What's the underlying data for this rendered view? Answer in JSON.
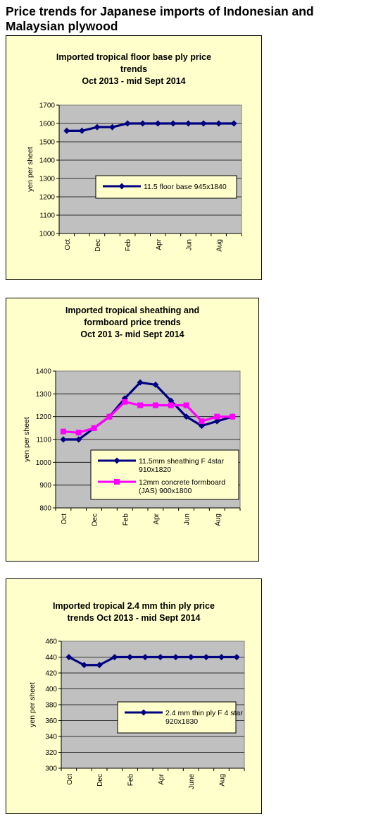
{
  "page_title": "Price trends for Japanese imports of Indonesian and Malaysian plywood",
  "chart_data": [
    {
      "type": "line",
      "title": "Imported tropical floor base ply price\ntrends\nOct 2013 - mid Sept 2014",
      "ylabel": "yen per sheet",
      "ylim": [
        1000,
        1700
      ],
      "yticks": [
        1000,
        1100,
        1200,
        1300,
        1400,
        1500,
        1600,
        1700
      ],
      "xticks": [
        "Oct",
        "Dec",
        "Feb",
        "Apr",
        "Jun",
        "Aug"
      ],
      "xtick_positions": [
        0,
        2,
        4,
        6,
        8,
        10
      ],
      "x": [
        0,
        1,
        2,
        3,
        4,
        5,
        6,
        7,
        8,
        9,
        10,
        11
      ],
      "grid": true,
      "legend_position": "center-right",
      "series": [
        {
          "name": "11.5 floor base 945x1840",
          "color": "#000080",
          "marker": "diamond",
          "values": [
            1560,
            1560,
            1580,
            1580,
            1600,
            1600,
            1600,
            1600,
            1600,
            1600,
            1600,
            1600
          ]
        }
      ]
    },
    {
      "type": "line",
      "title": "Imported tropical sheathing and\nformboard price trends\nOct 201 3- mid  Sept 2014",
      "ylabel": "yen per sheet",
      "ylim": [
        800,
        1400
      ],
      "yticks": [
        800,
        900,
        1000,
        1100,
        1200,
        1300,
        1400
      ],
      "xticks": [
        "Oct",
        "Dec",
        "Feb",
        "Apr",
        "Jun",
        "Aug"
      ],
      "xtick_positions": [
        0,
        2,
        4,
        6,
        8,
        10
      ],
      "x": [
        0,
        1,
        2,
        3,
        4,
        5,
        6,
        7,
        8,
        9,
        10,
        11
      ],
      "grid": true,
      "legend_position": "bottom-right",
      "series": [
        {
          "name": "11.5mm sheathing F 4star 910x1820",
          "color": "#000080",
          "marker": "diamond",
          "values": [
            1100,
            1100,
            1150,
            1200,
            1280,
            1350,
            1340,
            1270,
            1200,
            1160,
            1180,
            1200
          ]
        },
        {
          "name": "12mm concrete formboard (JAS) 900x1800",
          "color": "#ff00ff",
          "marker": "square",
          "values": [
            1135,
            1130,
            1150,
            1200,
            1265,
            1250,
            1250,
            1250,
            1250,
            1180,
            1200,
            1200
          ]
        }
      ]
    },
    {
      "type": "line",
      "title": "Imported tropical 2.4 mm thin ply price\ntrends  Oct  2013  - mid Sept 2014",
      "ylabel": "yen per sheet",
      "ylim": [
        300,
        460
      ],
      "yticks": [
        300,
        320,
        340,
        360,
        380,
        400,
        420,
        440,
        460
      ],
      "xticks": [
        "Oct",
        "Dec",
        "Feb",
        "Apr",
        "June",
        "Aug"
      ],
      "xtick_positions": [
        0,
        2,
        4,
        6,
        8,
        10
      ],
      "x": [
        0,
        1,
        2,
        3,
        4,
        5,
        6,
        7,
        8,
        9,
        10,
        11
      ],
      "grid": true,
      "legend_position": "center-right",
      "series": [
        {
          "name": "2.4 mm thin ply F 4 star 920x1830",
          "color": "#000080",
          "marker": "diamond",
          "values": [
            440,
            430,
            430,
            440,
            440,
            440,
            440,
            440,
            440,
            440,
            440,
            440
          ]
        }
      ]
    }
  ]
}
